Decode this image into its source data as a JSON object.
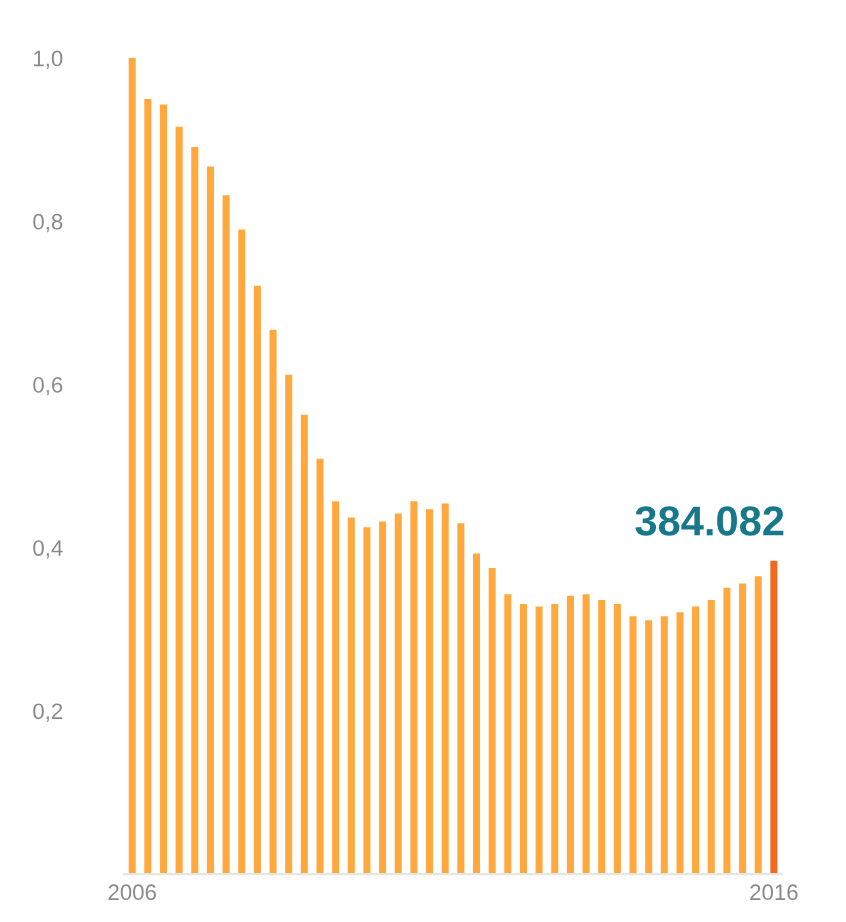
{
  "chart_data": {
    "type": "bar",
    "categories": [
      "2006",
      null,
      null,
      null,
      null,
      null,
      null,
      null,
      null,
      null,
      null,
      null,
      null,
      null,
      null,
      null,
      null,
      null,
      null,
      null,
      null,
      null,
      null,
      null,
      null,
      null,
      null,
      null,
      null,
      null,
      null,
      null,
      null,
      null,
      null,
      null,
      null,
      null,
      null,
      null,
      null,
      "2016"
    ],
    "values": [
      1.0,
      0.95,
      0.943,
      0.916,
      0.891,
      0.867,
      0.832,
      0.79,
      0.721,
      0.667,
      0.612,
      0.563,
      0.509,
      0.457,
      0.437,
      0.425,
      0.432,
      0.442,
      0.457,
      0.447,
      0.454,
      0.43,
      0.393,
      0.375,
      0.343,
      0.331,
      0.328,
      0.331,
      0.341,
      0.343,
      0.336,
      0.331,
      0.316,
      0.311,
      0.316,
      0.321,
      0.328,
      0.336,
      0.351,
      0.356,
      0.365,
      0.384082
    ],
    "colors": [
      "#ffa83e",
      "#ffa83e",
      "#ffa83e",
      "#ffa83e",
      "#ffa83e",
      "#ffa83e",
      "#ffa83e",
      "#ffa83e",
      "#ffa83e",
      "#ffa83e",
      "#ffa83e",
      "#ffa83e",
      "#ffa83e",
      "#ffa83e",
      "#ffa83e",
      "#ffa83e",
      "#ffa83e",
      "#ffa83e",
      "#ffa83e",
      "#ffa83e",
      "#ffa83e",
      "#ffa83e",
      "#ffa83e",
      "#ffa83e",
      "#ffa83e",
      "#ffa83e",
      "#ffa83e",
      "#ffa83e",
      "#ffa83e",
      "#ffa83e",
      "#ffa83e",
      "#ffa83e",
      "#ffa83e",
      "#ffa83e",
      "#ffa83e",
      "#ffa83e",
      "#ffa83e",
      "#ffa83e",
      "#ffa83e",
      "#ffa83e",
      "#ffa83e",
      "#f26a1f"
    ],
    "annotations": [
      {
        "text": "384.082",
        "x": "2016",
        "y": 0.384082
      }
    ],
    "ylim": [
      0,
      1.0
    ],
    "yticks": [
      {
        "value": 0.2,
        "label": "0,2"
      },
      {
        "value": 0.4,
        "label": "0,4"
      },
      {
        "value": 0.6,
        "label": "0,6"
      },
      {
        "value": 0.8,
        "label": "0,8"
      },
      {
        "value": 1.0,
        "label": "1,0"
      }
    ],
    "grid": false,
    "legend": false
  }
}
